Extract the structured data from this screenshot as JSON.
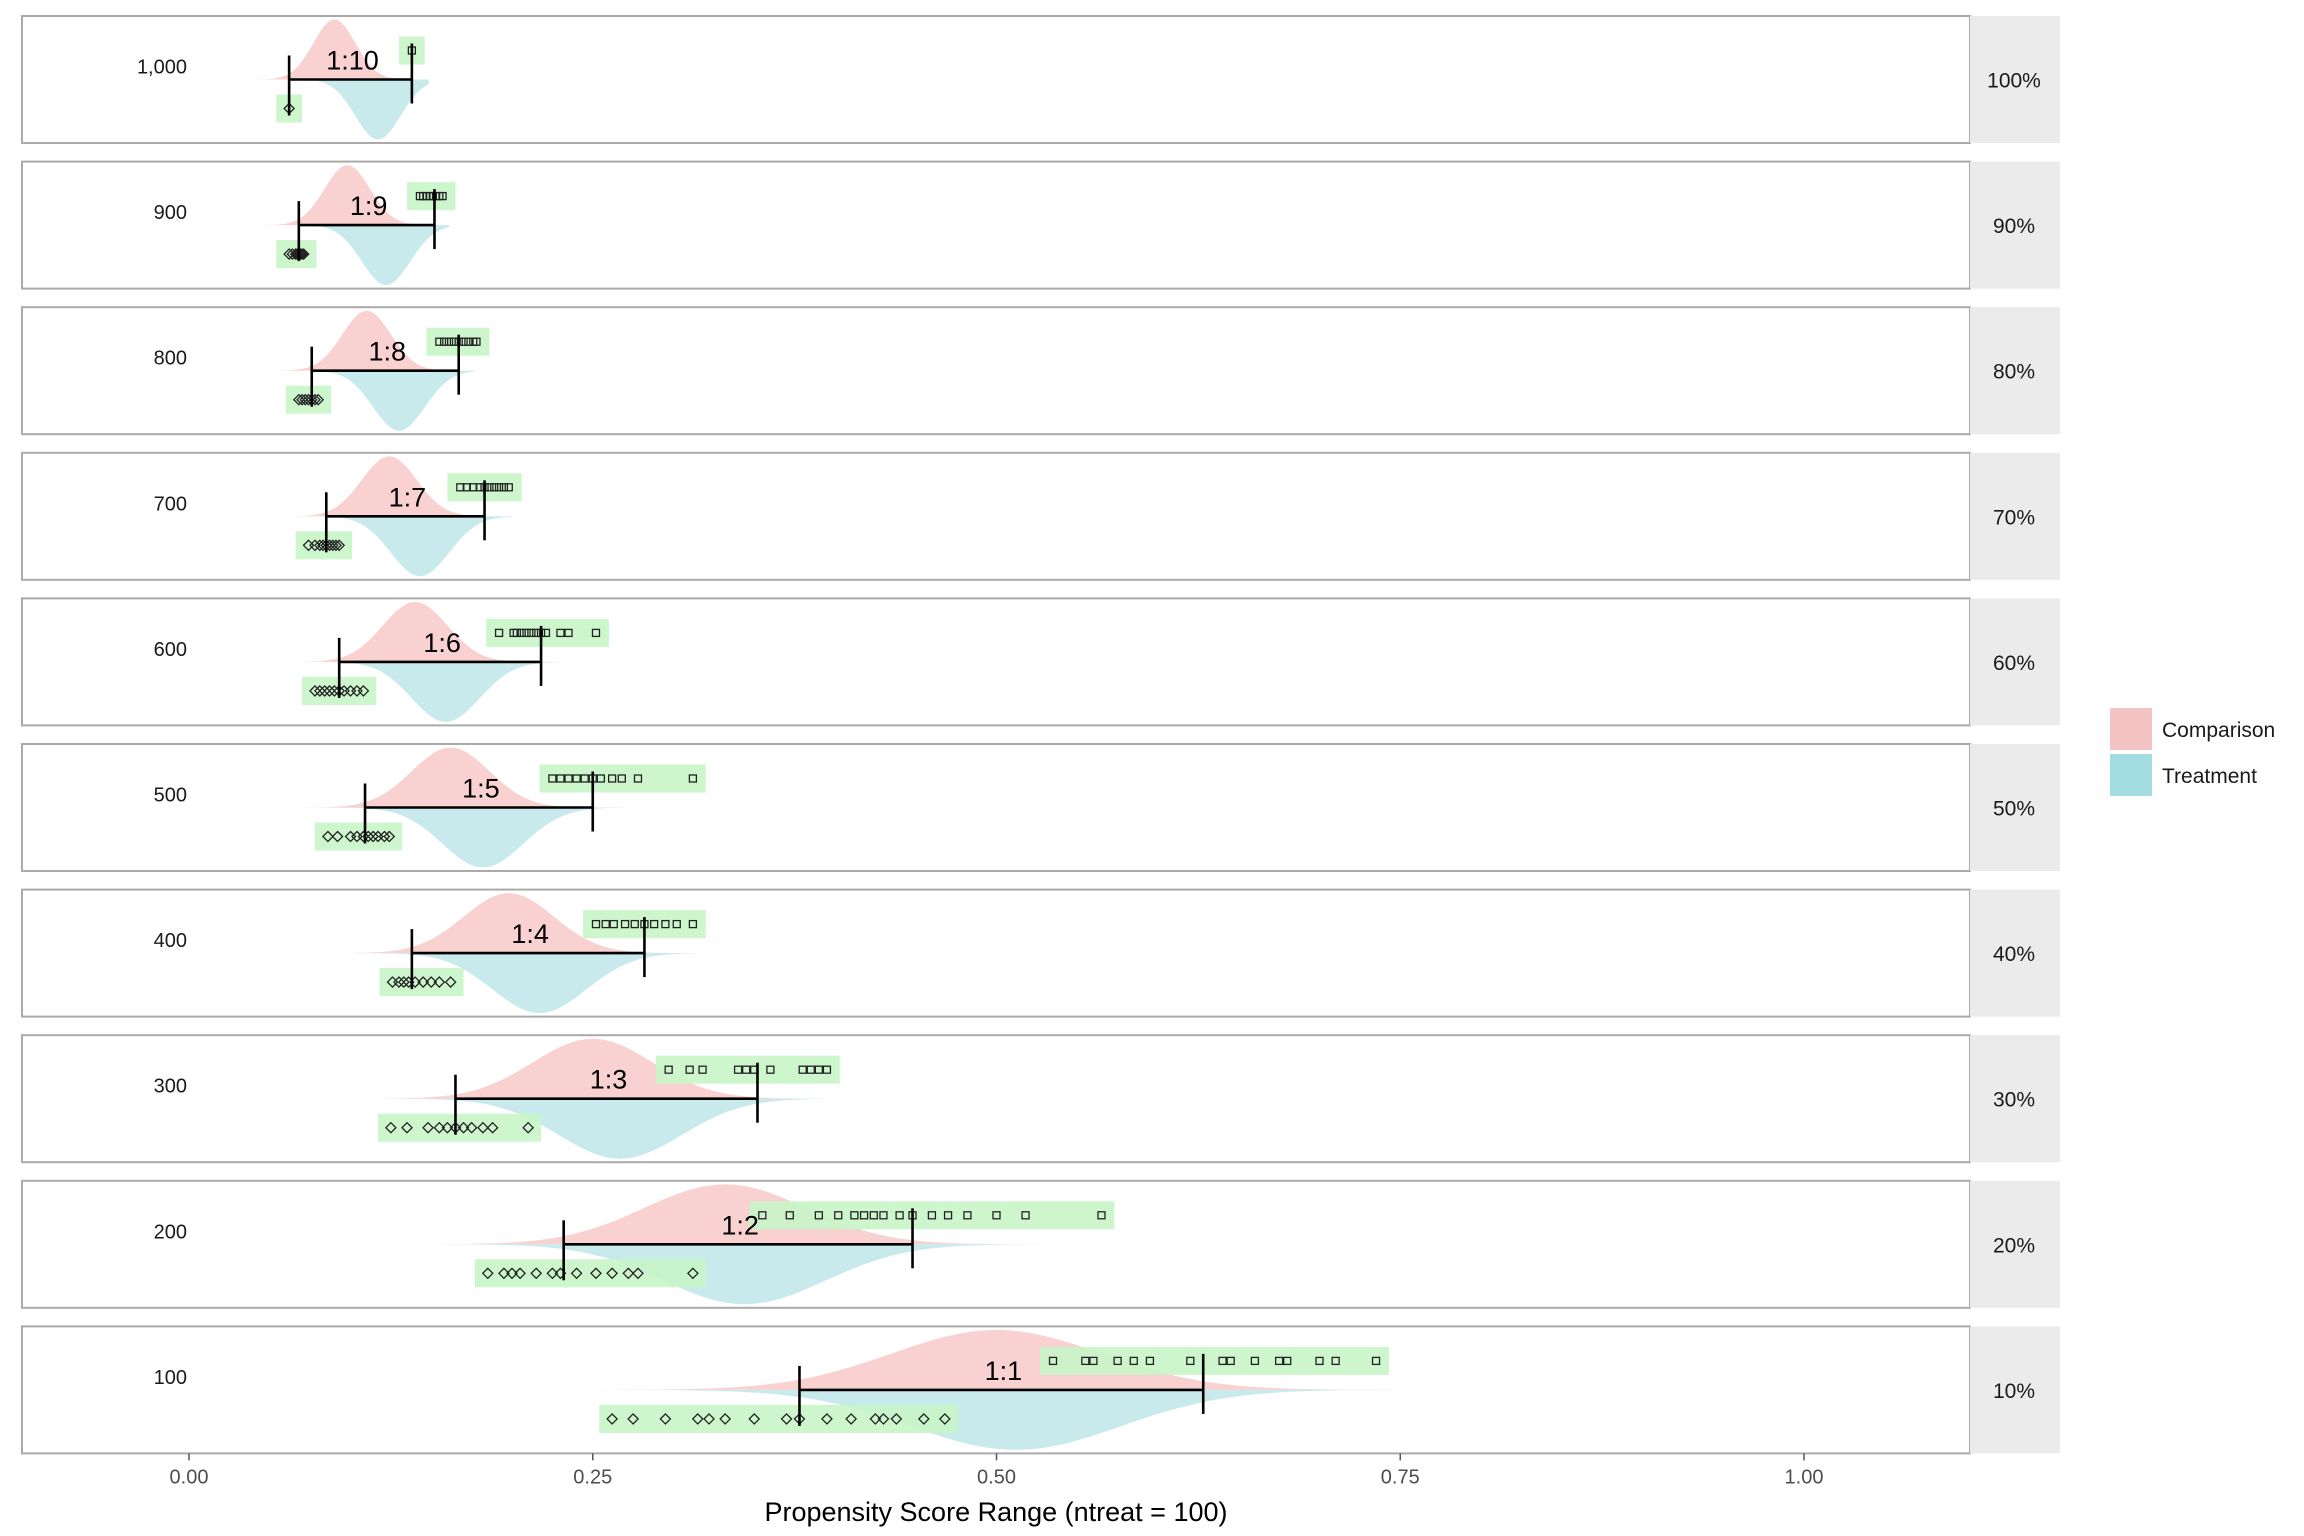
{
  "chart_data": {
    "type": "ridgeline-density",
    "xlabel": "Propensity Score Range (ntreat = 100)",
    "xlim": [
      -0.1,
      1.1
    ],
    "x_ticks": [
      0.0,
      0.25,
      0.5,
      0.75,
      1.0
    ],
    "x_tick_labels": [
      "0.00",
      "0.25",
      "0.50",
      "0.75",
      "1.00"
    ],
    "colors": {
      "comparison": "#f8c9c9",
      "treatment": "#bfe6ea",
      "range_box": "#c8f5c8",
      "strip": "#ebebeb",
      "frame": "#aaaaaa"
    },
    "legend": {
      "position": "right",
      "items": [
        {
          "name": "Comparison",
          "color": "#f4c3c3"
        },
        {
          "name": "Treatment",
          "color": "#a4dde1"
        }
      ]
    },
    "panels": [
      {
        "row_label": "1,000",
        "strip_label": "100%",
        "ratio": "1:10",
        "bar": [
          0.062,
          0.138
        ],
        "comp_peak": 0.09,
        "comp_sd": 0.013,
        "treat_peak": 0.105,
        "treat_sd": 0.014,
        "treat_points": [
          0.062
        ],
        "comp_points": [
          0.138
        ]
      },
      {
        "row_label": "900",
        "strip_label": "90%",
        "ratio": "1:9",
        "bar": [
          0.068,
          0.152
        ],
        "comp_peak": 0.098,
        "comp_sd": 0.014,
        "treat_peak": 0.11,
        "treat_sd": 0.015,
        "treat_points": [
          0.062,
          0.064,
          0.066,
          0.067,
          0.068,
          0.069,
          0.07,
          0.071
        ],
        "comp_points": [
          0.143,
          0.145,
          0.147,
          0.149,
          0.151,
          0.153,
          0.155,
          0.157
        ]
      },
      {
        "row_label": "800",
        "strip_label": "80%",
        "ratio": "1:8",
        "bar": [
          0.076,
          0.167
        ],
        "comp_peak": 0.11,
        "comp_sd": 0.015,
        "treat_peak": 0.118,
        "treat_sd": 0.016,
        "treat_points": [
          0.068,
          0.07,
          0.072,
          0.074,
          0.076,
          0.078,
          0.08
        ],
        "comp_points": [
          0.155,
          0.158,
          0.161,
          0.164,
          0.167,
          0.17,
          0.173,
          0.176,
          0.178
        ]
      },
      {
        "row_label": "700",
        "strip_label": "70%",
        "ratio": "1:7",
        "bar": [
          0.085,
          0.183
        ],
        "comp_peak": 0.124,
        "comp_sd": 0.017,
        "treat_peak": 0.131,
        "treat_sd": 0.018,
        "treat_points": [
          0.074,
          0.078,
          0.081,
          0.083,
          0.085,
          0.087,
          0.089,
          0.091,
          0.093
        ],
        "comp_points": [
          0.168,
          0.172,
          0.176,
          0.18,
          0.183,
          0.186,
          0.189,
          0.192,
          0.195,
          0.198
        ]
      },
      {
        "row_label": "600",
        "strip_label": "60%",
        "ratio": "1:6",
        "bar": [
          0.093,
          0.218
        ],
        "comp_peak": 0.14,
        "comp_sd": 0.02,
        "treat_peak": 0.147,
        "treat_sd": 0.021,
        "treat_points": [
          0.078,
          0.081,
          0.084,
          0.087,
          0.09,
          0.093,
          0.096,
          0.1,
          0.104,
          0.108
        ],
        "comp_points": [
          0.192,
          0.201,
          0.203,
          0.206,
          0.209,
          0.212,
          0.215,
          0.218,
          0.221,
          0.23,
          0.235,
          0.252
        ]
      },
      {
        "row_label": "500",
        "strip_label": "50%",
        "ratio": "1:5",
        "bar": [
          0.109,
          0.25
        ],
        "comp_peak": 0.162,
        "comp_sd": 0.024,
        "treat_peak": 0.17,
        "treat_sd": 0.025,
        "treat_points": [
          0.086,
          0.092,
          0.1,
          0.104,
          0.108,
          0.111,
          0.114,
          0.117,
          0.121,
          0.124
        ],
        "comp_points": [
          0.225,
          0.23,
          0.235,
          0.24,
          0.245,
          0.25,
          0.255,
          0.262,
          0.268,
          0.278,
          0.312
        ]
      },
      {
        "row_label": "400",
        "strip_label": "40%",
        "ratio": "1:4",
        "bar": [
          0.138,
          0.282
        ],
        "comp_peak": 0.198,
        "comp_sd": 0.028,
        "treat_peak": 0.205,
        "treat_sd": 0.029,
        "treat_points": [
          0.126,
          0.13,
          0.133,
          0.136,
          0.14,
          0.145,
          0.15,
          0.155,
          0.162
        ],
        "comp_points": [
          0.252,
          0.258,
          0.263,
          0.27,
          0.276,
          0.282,
          0.288,
          0.295,
          0.302,
          0.312
        ]
      },
      {
        "row_label": "300",
        "strip_label": "30%",
        "ratio": "1:3",
        "bar": [
          0.165,
          0.352
        ],
        "comp_peak": 0.25,
        "comp_sd": 0.037,
        "treat_peak": 0.255,
        "treat_sd": 0.038,
        "treat_points": [
          0.125,
          0.135,
          0.148,
          0.155,
          0.16,
          0.165,
          0.17,
          0.175,
          0.182,
          0.188,
          0.21
        ],
        "comp_points": [
          0.297,
          0.31,
          0.318,
          0.34,
          0.345,
          0.35,
          0.36,
          0.38,
          0.385,
          0.39,
          0.395
        ]
      },
      {
        "row_label": "200",
        "strip_label": "20%",
        "ratio": "1:2",
        "bar": [
          0.232,
          0.448
        ],
        "comp_peak": 0.332,
        "comp_sd": 0.05,
        "treat_peak": 0.332,
        "treat_sd": 0.05,
        "treat_points": [
          0.185,
          0.195,
          0.2,
          0.205,
          0.215,
          0.225,
          0.23,
          0.24,
          0.252,
          0.262,
          0.272,
          0.278,
          0.312
        ],
        "comp_points": [
          0.355,
          0.372,
          0.39,
          0.402,
          0.412,
          0.418,
          0.424,
          0.43,
          0.44,
          0.448,
          0.46,
          0.47,
          0.482,
          0.5,
          0.518,
          0.565
        ]
      },
      {
        "row_label": "100",
        "strip_label": "10%",
        "ratio": "1:1",
        "bar": [
          0.378,
          0.628
        ],
        "comp_peak": 0.5,
        "comp_sd": 0.065,
        "treat_peak": 0.5,
        "treat_sd": 0.065,
        "treat_points": [
          0.262,
          0.275,
          0.295,
          0.315,
          0.322,
          0.332,
          0.35,
          0.37,
          0.378,
          0.395,
          0.41,
          0.425,
          0.43,
          0.438,
          0.455,
          0.468
        ],
        "comp_points": [
          0.535,
          0.555,
          0.56,
          0.575,
          0.585,
          0.595,
          0.62,
          0.64,
          0.645,
          0.66,
          0.675,
          0.68,
          0.7,
          0.71,
          0.735
        ]
      }
    ]
  }
}
